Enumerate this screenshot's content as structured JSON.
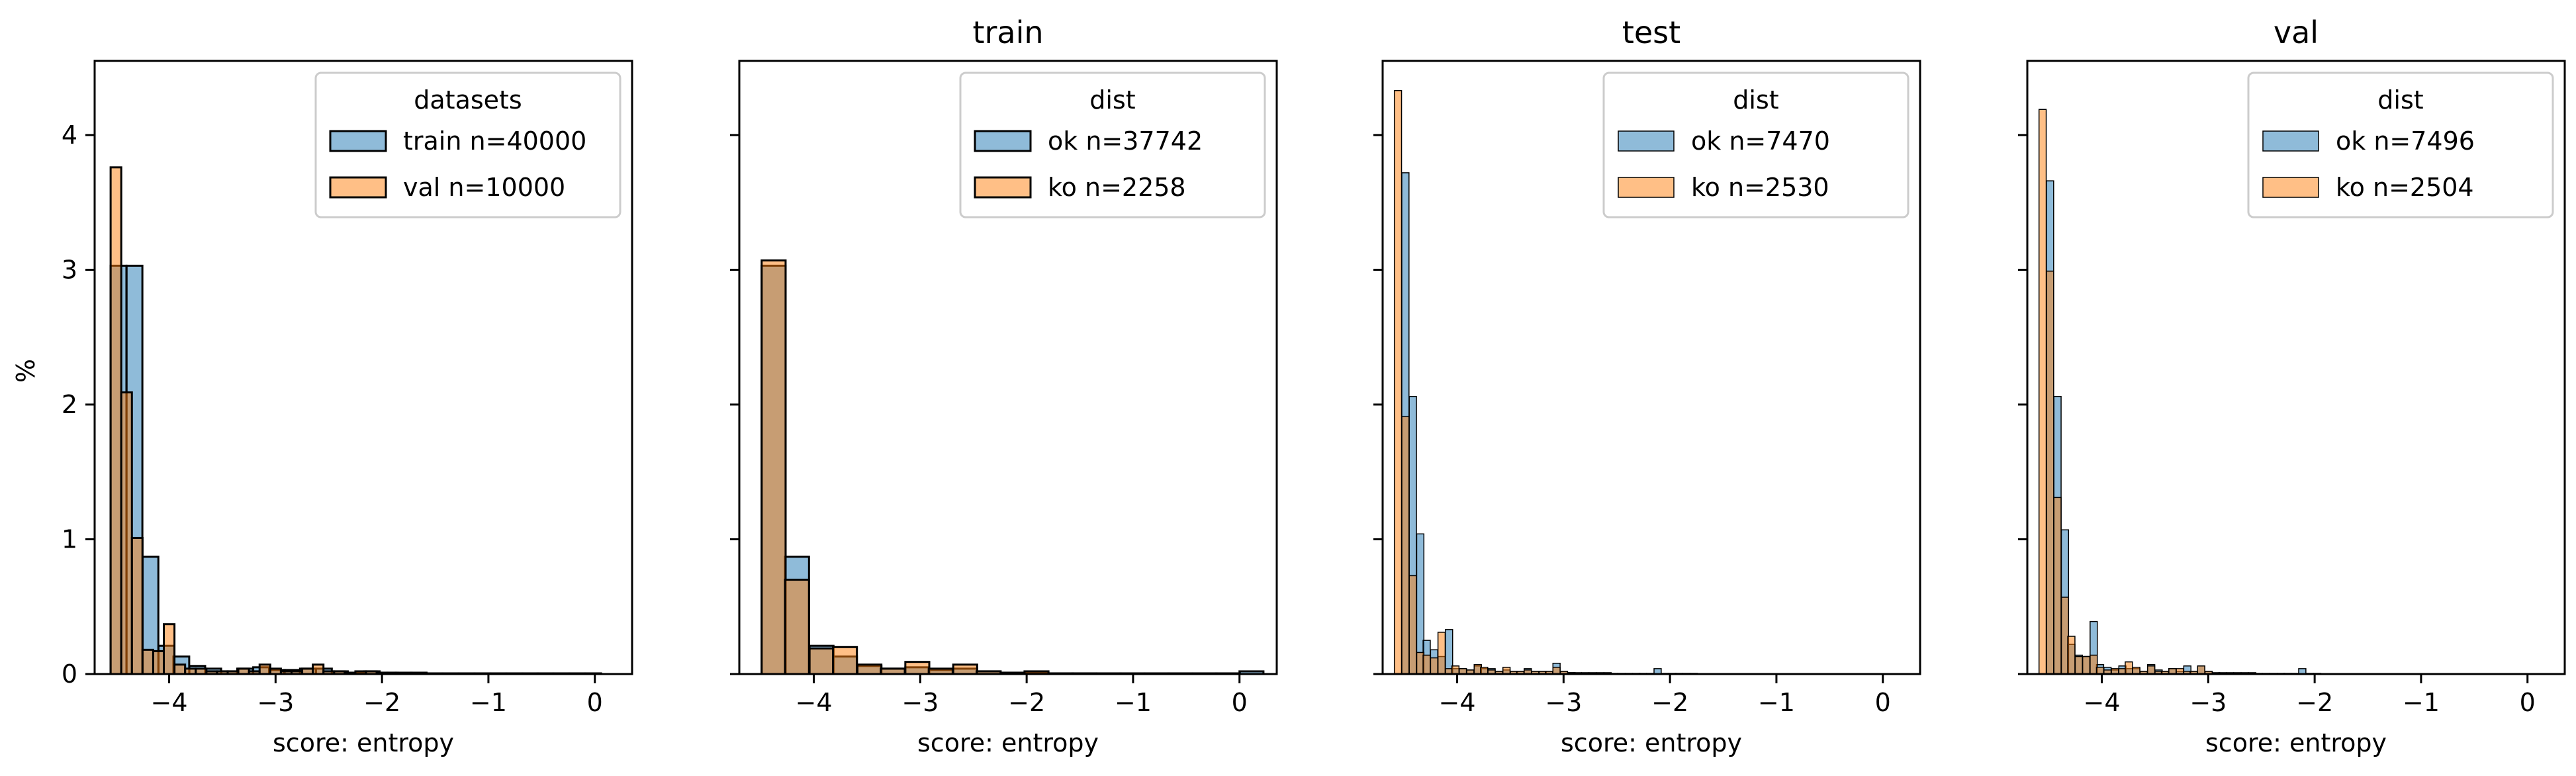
{
  "figure": {
    "ylabel": "%"
  },
  "chart_data": [
    {
      "type": "bar",
      "title": "",
      "xlabel": "score: entropy",
      "ylabel": "%",
      "xlim": [
        -4.7,
        0.35
      ],
      "ylim": [
        0,
        4.55
      ],
      "xticks": [
        -4,
        -3,
        -2,
        -1,
        0
      ],
      "yticks": [
        0,
        1,
        2,
        3,
        4
      ],
      "show_yticklabels": true,
      "edge_color": "#000000",
      "edge_width": 3,
      "legend": {
        "title": "datasets",
        "position": "top-right"
      },
      "series": [
        {
          "name": "train n=40000",
          "color": "#1f77b4",
          "bin_width": 0.1485,
          "bins": [
            [
              -4.55,
              3.03
            ],
            [
              -4.4,
              3.03
            ],
            [
              -4.25,
              0.87
            ],
            [
              -4.1,
              0.21
            ],
            [
              -3.96,
              0.13
            ],
            [
              -3.81,
              0.06
            ],
            [
              -3.66,
              0.04
            ],
            [
              -3.51,
              0.02
            ],
            [
              -3.36,
              0.04
            ],
            [
              -3.21,
              0.05
            ],
            [
              -3.06,
              0.03
            ],
            [
              -2.92,
              0.03
            ],
            [
              -2.77,
              0.04
            ],
            [
              -2.62,
              0.04
            ],
            [
              -2.47,
              0.02
            ],
            [
              -2.32,
              0.01
            ],
            [
              -2.17,
              0.02
            ],
            [
              -2.02,
              0.01
            ],
            [
              -1.87,
              0.01
            ],
            [
              -1.73,
              0.01
            ],
            [
              -1.58,
              0.005
            ],
            [
              -1.43,
              0.005
            ],
            [
              -1.28,
              0.005
            ],
            [
              -1.13,
              0.005
            ],
            [
              -0.98,
              0.005
            ],
            [
              -0.83,
              0.005
            ],
            [
              -0.68,
              0.005
            ],
            [
              -0.54,
              0.005
            ],
            [
              -0.39,
              0.005
            ],
            [
              -0.24,
              0.005
            ],
            [
              -0.09,
              0.005
            ]
          ]
        },
        {
          "name": "val n=10000",
          "color": "#ff7f0e",
          "bin_width": 0.1,
          "bins": [
            [
              -4.55,
              3.76
            ],
            [
              -4.45,
              2.09
            ],
            [
              -4.35,
              1.01
            ],
            [
              -4.25,
              0.18
            ],
            [
              -4.15,
              0.17
            ],
            [
              -4.05,
              0.37
            ],
            [
              -3.95,
              0.07
            ],
            [
              -3.85,
              0.04
            ],
            [
              -3.75,
              0.04
            ],
            [
              -3.65,
              0.02
            ],
            [
              -3.55,
              0.02
            ],
            [
              -3.45,
              0.02
            ],
            [
              -3.35,
              0.04
            ],
            [
              -3.25,
              0.02
            ],
            [
              -3.15,
              0.07
            ],
            [
              -3.05,
              0.04
            ],
            [
              -2.95,
              0.02
            ],
            [
              -2.85,
              0.02
            ],
            [
              -2.75,
              0.04
            ],
            [
              -2.65,
              0.07
            ],
            [
              -2.55,
              0.02
            ],
            [
              -2.45,
              0.02
            ],
            [
              -2.35,
              0.01
            ],
            [
              -2.25,
              0.02
            ],
            [
              -2.15,
              0.02
            ],
            [
              -2.05,
              0.01
            ],
            [
              -1.95,
              0.01
            ]
          ]
        }
      ]
    },
    {
      "type": "bar",
      "title": "train",
      "xlabel": "score: entropy",
      "ylabel": "",
      "xlim": [
        -4.7,
        0.35
      ],
      "ylim": [
        0,
        4.55
      ],
      "xticks": [
        -4,
        -3,
        -2,
        -1,
        0
      ],
      "yticks": [
        0,
        1,
        2,
        3,
        4
      ],
      "show_yticklabels": false,
      "edge_color": "#000000",
      "edge_width": 3,
      "legend": {
        "title": "dist",
        "position": "top-right"
      },
      "series": [
        {
          "name": "ok n=37742",
          "color": "#1f77b4",
          "bin_width": 0.225,
          "bins": [
            [
              -4.49,
              3.03
            ],
            [
              -4.27,
              0.87
            ],
            [
              -4.04,
              0.21
            ],
            [
              -3.82,
              0.13
            ],
            [
              -3.59,
              0.06
            ],
            [
              -3.37,
              0.04
            ],
            [
              -3.14,
              0.05
            ],
            [
              -2.92,
              0.03
            ],
            [
              -2.69,
              0.04
            ],
            [
              -2.47,
              0.02
            ],
            [
              -2.24,
              0.01
            ],
            [
              -2.02,
              0.01
            ],
            [
              -1.79,
              0.005
            ],
            [
              -1.57,
              0.005
            ],
            [
              -1.34,
              0.005
            ],
            [
              -1.12,
              0.005
            ],
            [
              -0.89,
              0.005
            ],
            [
              -0.67,
              0.005
            ],
            [
              -0.44,
              0.005
            ],
            [
              -0.22,
              0.005
            ],
            [
              0.0,
              0.02
            ]
          ]
        },
        {
          "name": "ko n=2258",
          "color": "#ff7f0e",
          "bin_width": 0.225,
          "bins": [
            [
              -4.49,
              3.07
            ],
            [
              -4.27,
              0.7
            ],
            [
              -4.04,
              0.19
            ],
            [
              -3.82,
              0.2
            ],
            [
              -3.59,
              0.07
            ],
            [
              -3.37,
              0.04
            ],
            [
              -3.14,
              0.09
            ],
            [
              -2.92,
              0.04
            ],
            [
              -2.69,
              0.07
            ],
            [
              -2.47,
              0.02
            ],
            [
              -2.24,
              0.01
            ],
            [
              -2.02,
              0.02
            ],
            [
              -1.79,
              0.005
            ],
            [
              -1.57,
              0.005
            ]
          ]
        }
      ]
    },
    {
      "type": "bar",
      "title": "test",
      "xlabel": "score: entropy",
      "ylabel": "",
      "xlim": [
        -4.7,
        0.35
      ],
      "ylim": [
        0,
        4.55
      ],
      "xticks": [
        -4,
        -3,
        -2,
        -1,
        0
      ],
      "yticks": [
        0,
        1,
        2,
        3,
        4
      ],
      "show_yticklabels": false,
      "edge_color": "#000000",
      "edge_width": 1.5,
      "legend": {
        "title": "dist",
        "position": "top-right"
      },
      "series": [
        {
          "name": "ok n=7470",
          "color": "#1f77b4",
          "bin_width": 0.0675,
          "bins": [
            [
              -4.52,
              3.72
            ],
            [
              -4.45,
              2.06
            ],
            [
              -4.38,
              1.04
            ],
            [
              -4.32,
              0.25
            ],
            [
              -4.25,
              0.18
            ],
            [
              -4.18,
              0.13
            ],
            [
              -4.11,
              0.33
            ],
            [
              -4.05,
              0.04
            ],
            [
              -3.98,
              0.04
            ],
            [
              -3.91,
              0.03
            ],
            [
              -3.84,
              0.06
            ],
            [
              -3.78,
              0.04
            ],
            [
              -3.71,
              0.04
            ],
            [
              -3.64,
              0.02
            ],
            [
              -3.57,
              0.03
            ],
            [
              -3.5,
              0.02
            ],
            [
              -3.44,
              0.02
            ],
            [
              -3.37,
              0.04
            ],
            [
              -3.3,
              0.02
            ],
            [
              -3.23,
              0.02
            ],
            [
              -3.17,
              0.02
            ],
            [
              -3.1,
              0.08
            ],
            [
              -3.03,
              0.02
            ],
            [
              -2.96,
              0.01
            ],
            [
              -2.9,
              0.01
            ],
            [
              -2.83,
              0.01
            ],
            [
              -2.76,
              0.01
            ],
            [
              -2.69,
              0.01
            ],
            [
              -2.62,
              0.01
            ],
            [
              -2.56,
              0.005
            ],
            [
              -2.49,
              0.005
            ],
            [
              -2.42,
              0.005
            ],
            [
              -2.35,
              0.005
            ],
            [
              -2.29,
              0.005
            ],
            [
              -2.22,
              0.005
            ],
            [
              -2.15,
              0.04
            ],
            [
              -2.08,
              0.005
            ],
            [
              -2.01,
              0.005
            ],
            [
              -1.95,
              0.005
            ],
            [
              -1.88,
              0.005
            ],
            [
              -1.81,
              0.005
            ]
          ]
        },
        {
          "name": "ko n=2530",
          "color": "#ff7f0e",
          "bin_width": 0.0675,
          "bins": [
            [
              -4.59,
              4.33
            ],
            [
              -4.52,
              1.91
            ],
            [
              -4.45,
              0.73
            ],
            [
              -4.38,
              0.16
            ],
            [
              -4.32,
              0.14
            ],
            [
              -4.25,
              0.12
            ],
            [
              -4.18,
              0.31
            ],
            [
              -4.11,
              0.04
            ],
            [
              -4.05,
              0.06
            ],
            [
              -3.98,
              0.04
            ],
            [
              -3.91,
              0.03
            ],
            [
              -3.84,
              0.07
            ],
            [
              -3.78,
              0.05
            ],
            [
              -3.71,
              0.03
            ],
            [
              -3.64,
              0.02
            ],
            [
              -3.57,
              0.05
            ],
            [
              -3.5,
              0.02
            ],
            [
              -3.44,
              0.02
            ],
            [
              -3.37,
              0.03
            ],
            [
              -3.3,
              0.02
            ],
            [
              -3.23,
              0.02
            ],
            [
              -3.17,
              0.02
            ],
            [
              -3.1,
              0.05
            ],
            [
              -3.03,
              0.02
            ],
            [
              -2.96,
              0.01
            ]
          ]
        }
      ]
    },
    {
      "type": "bar",
      "title": "val",
      "xlabel": "score: entropy",
      "ylabel": "",
      "xlim": [
        -4.7,
        0.35
      ],
      "ylim": [
        0,
        4.55
      ],
      "xticks": [
        -4,
        -3,
        -2,
        -1,
        0
      ],
      "yticks": [
        0,
        1,
        2,
        3,
        4
      ],
      "show_yticklabels": false,
      "edge_color": "#000000",
      "edge_width": 1.5,
      "legend": {
        "title": "dist",
        "position": "top-right"
      },
      "series": [
        {
          "name": "ok n=7496",
          "color": "#1f77b4",
          "bin_width": 0.0675,
          "bins": [
            [
              -4.52,
              3.66
            ],
            [
              -4.45,
              2.06
            ],
            [
              -4.38,
              1.07
            ],
            [
              -4.32,
              0.22
            ],
            [
              -4.25,
              0.14
            ],
            [
              -4.18,
              0.13
            ],
            [
              -4.11,
              0.39
            ],
            [
              -4.05,
              0.07
            ],
            [
              -3.98,
              0.05
            ],
            [
              -3.91,
              0.03
            ],
            [
              -3.84,
              0.06
            ],
            [
              -3.78,
              0.04
            ],
            [
              -3.71,
              0.04
            ],
            [
              -3.64,
              0.02
            ],
            [
              -3.57,
              0.07
            ],
            [
              -3.5,
              0.03
            ],
            [
              -3.44,
              0.02
            ],
            [
              -3.37,
              0.04
            ],
            [
              -3.3,
              0.02
            ],
            [
              -3.23,
              0.06
            ],
            [
              -3.17,
              0.02
            ],
            [
              -3.1,
              0.06
            ],
            [
              -3.03,
              0.02
            ],
            [
              -2.96,
              0.01
            ],
            [
              -2.9,
              0.01
            ],
            [
              -2.83,
              0.01
            ],
            [
              -2.76,
              0.01
            ],
            [
              -2.69,
              0.01
            ],
            [
              -2.62,
              0.01
            ],
            [
              -2.56,
              0.005
            ],
            [
              -2.49,
              0.005
            ],
            [
              -2.42,
              0.005
            ],
            [
              -2.35,
              0.005
            ],
            [
              -2.29,
              0.005
            ],
            [
              -2.22,
              0.005
            ],
            [
              -2.15,
              0.04
            ],
            [
              -2.08,
              0.005
            ],
            [
              -2.01,
              0.005
            ]
          ]
        },
        {
          "name": "ko n=2504",
          "color": "#ff7f0e",
          "bin_width": 0.0675,
          "bins": [
            [
              -4.59,
              4.19
            ],
            [
              -4.52,
              2.99
            ],
            [
              -4.45,
              1.31
            ],
            [
              -4.38,
              0.57
            ],
            [
              -4.32,
              0.28
            ],
            [
              -4.25,
              0.13
            ],
            [
              -4.18,
              0.13
            ],
            [
              -4.11,
              0.14
            ],
            [
              -4.05,
              0.05
            ],
            [
              -3.98,
              0.03
            ],
            [
              -3.91,
              0.04
            ],
            [
              -3.84,
              0.04
            ],
            [
              -3.78,
              0.09
            ],
            [
              -3.71,
              0.05
            ],
            [
              -3.64,
              0.02
            ],
            [
              -3.57,
              0.06
            ],
            [
              -3.5,
              0.02
            ],
            [
              -3.44,
              0.02
            ],
            [
              -3.37,
              0.04
            ],
            [
              -3.3,
              0.04
            ],
            [
              -3.23,
              0.02
            ],
            [
              -3.17,
              0.02
            ],
            [
              -3.1,
              0.06
            ],
            [
              -3.03,
              0.02
            ]
          ]
        }
      ]
    }
  ]
}
